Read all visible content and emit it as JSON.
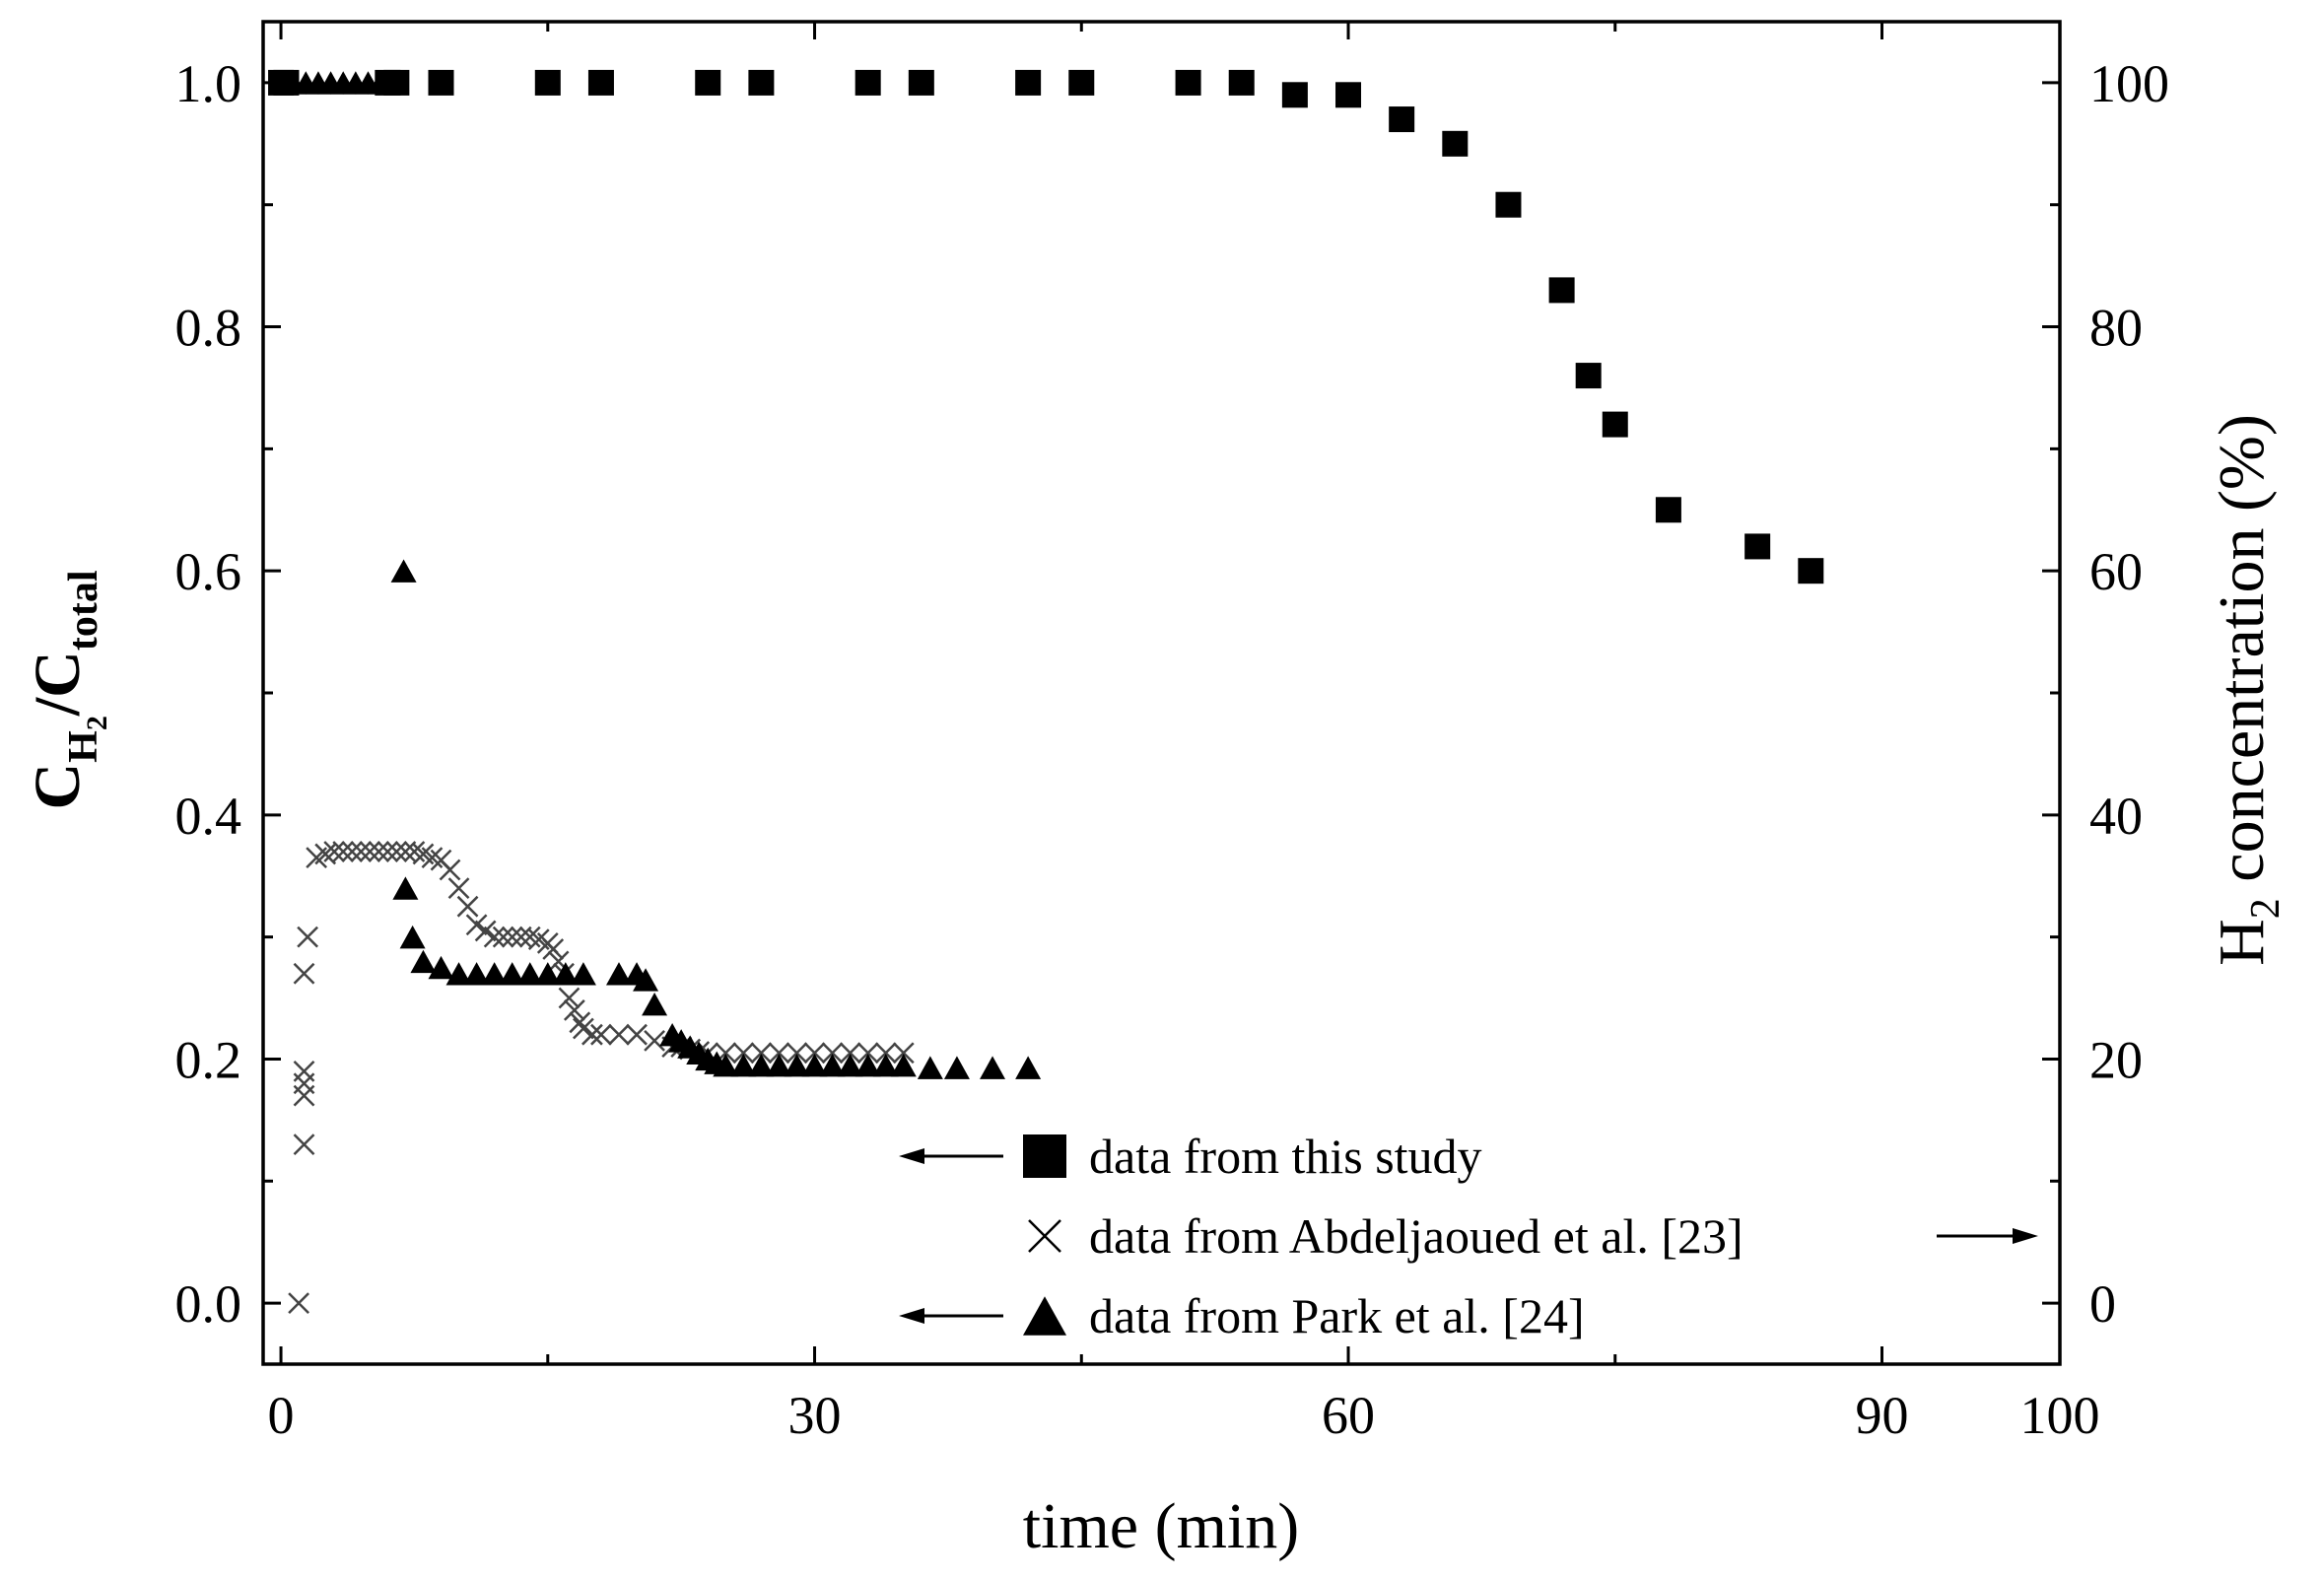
{
  "chart_data": {
    "type": "scatter",
    "xlabel": "time (min)",
    "ylabel_left": {
      "main": "C",
      "sub1": "H",
      "sub2": "2",
      "slash": "/C",
      "sub3": "total"
    },
    "ylabel_right": {
      "main": "H",
      "sub": "2",
      "rest": " concentration (%)"
    },
    "xlim": [
      -1,
      100
    ],
    "ylim_left": [
      -0.05,
      1.05
    ],
    "ylim_right": [
      -5,
      105
    ],
    "x_ticks": [
      0,
      30,
      60,
      90,
      100
    ],
    "x_tick_labels": [
      "0",
      "30",
      "60",
      "90",
      "100"
    ],
    "y_left_ticks": [
      0.0,
      0.2,
      0.4,
      0.6,
      0.8,
      1.0
    ],
    "y_left_tick_labels": [
      "0.0",
      "0.2",
      "0.4",
      "0.6",
      "0.8",
      "1.0"
    ],
    "y_right_ticks": [
      0,
      20,
      40,
      60,
      80,
      100
    ],
    "y_right_tick_labels": [
      "0",
      "20",
      "40",
      "60",
      "80",
      "100"
    ],
    "series": [
      {
        "name": "data from this study",
        "axis": "left",
        "marker": "square",
        "x": [
          0,
          0.3,
          6,
          6.5,
          9,
          15,
          18,
          24,
          27,
          33,
          36,
          42,
          45,
          51,
          54,
          57,
          60,
          63,
          66,
          69,
          72,
          73.5,
          75,
          78,
          83,
          86
        ],
        "y": [
          1.0,
          1.0,
          1.0,
          1.0,
          1.0,
          1.0,
          1.0,
          1.0,
          1.0,
          1.0,
          1.0,
          1.0,
          1.0,
          1.0,
          1.0,
          0.99,
          0.99,
          0.97,
          0.95,
          0.9,
          0.83,
          0.76,
          0.72,
          0.65,
          0.62,
          0.6
        ]
      },
      {
        "name": "data from Abdeljaoued et al. [23]",
        "axis": "right",
        "marker": "x",
        "x": [
          1,
          1.3,
          1.3,
          1.3,
          1.3,
          1.3,
          1.5,
          2,
          2.5,
          3,
          3.5,
          4,
          4.5,
          5,
          5.5,
          6,
          6.5,
          7,
          7.5,
          8,
          8.5,
          9,
          9.5,
          10,
          10.5,
          11,
          11.5,
          12,
          12.5,
          13,
          13.5,
          14,
          14.5,
          15,
          15.3,
          15.6,
          15.9,
          16.2,
          16.5,
          16.8,
          17,
          17.5,
          18,
          19,
          20,
          21,
          22,
          22.5,
          23,
          23.5,
          24,
          25,
          26,
          27,
          28,
          29,
          30,
          31,
          32,
          33,
          34,
          35
        ],
        "y": [
          0,
          13,
          17,
          18,
          19,
          27,
          30,
          36.5,
          36.8,
          37,
          37,
          37,
          37,
          37,
          37,
          37,
          37,
          37,
          37,
          36.8,
          36.5,
          36.3,
          35.5,
          34,
          32.5,
          31,
          30.5,
          30,
          30,
          30,
          30,
          30,
          29.8,
          29.5,
          29,
          28,
          27,
          25,
          24,
          23,
          22.5,
          22,
          22,
          22,
          22,
          21.5,
          21,
          21,
          20.8,
          20.6,
          20.5,
          20.5,
          20.5,
          20.5,
          20.5,
          20.5,
          20.5,
          20.5,
          20.5,
          20.5,
          20.5,
          20.5
        ]
      },
      {
        "name": "data from Park et al. [24]",
        "axis": "left",
        "marker": "triangle",
        "x": [
          0,
          0.7,
          1.4,
          2.1,
          2.8,
          3.5,
          4.2,
          4.9,
          5.6,
          6.3,
          6.9,
          7.0,
          7.4,
          8,
          9,
          10,
          11,
          12,
          13,
          14,
          15,
          16,
          17,
          19,
          20,
          20.5,
          21,
          22,
          22.5,
          23,
          23.5,
          24,
          24.5,
          25,
          26,
          27,
          28,
          29,
          30,
          31,
          32,
          33,
          34,
          35,
          36.5,
          38,
          40,
          42
        ],
        "y": [
          1.0,
          1.0,
          1.0,
          1.0,
          1.0,
          1.0,
          1.0,
          1.0,
          1.0,
          1.0,
          0.6,
          0.34,
          0.3,
          0.28,
          0.275,
          0.27,
          0.27,
          0.27,
          0.27,
          0.27,
          0.27,
          0.27,
          0.27,
          0.27,
          0.27,
          0.265,
          0.245,
          0.22,
          0.215,
          0.21,
          0.205,
          0.2,
          0.197,
          0.195,
          0.195,
          0.195,
          0.195,
          0.195,
          0.195,
          0.195,
          0.195,
          0.195,
          0.195,
          0.195,
          0.193,
          0.193,
          0.193,
          0.193
        ]
      }
    ],
    "legend": [
      {
        "label": "data from this study",
        "marker": "square",
        "arrow": "left"
      },
      {
        "label": "data from Abdeljaoued et al. [23]",
        "marker": "x",
        "arrow": "right"
      },
      {
        "label": "data from Park et al. [24]",
        "marker": "triangle",
        "arrow": "left"
      }
    ]
  }
}
